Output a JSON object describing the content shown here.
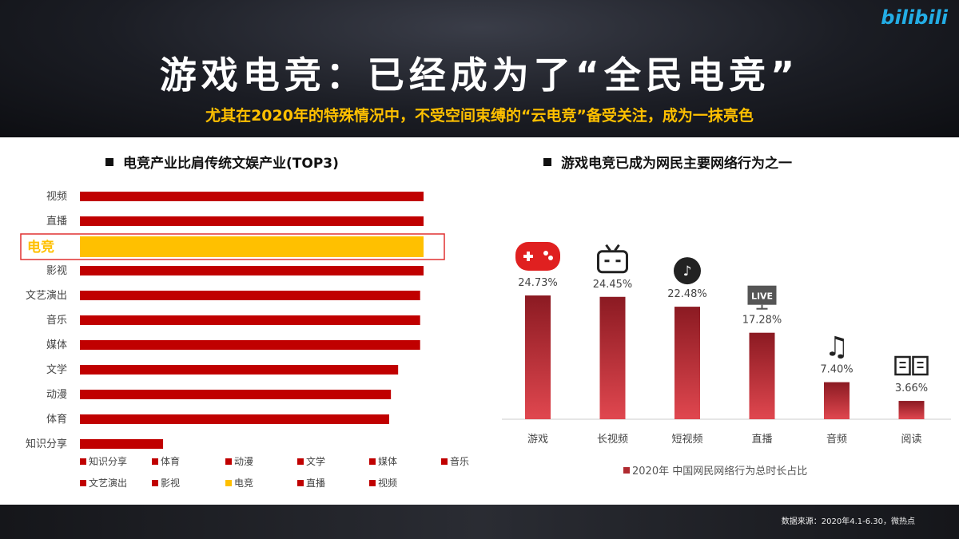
{
  "header": {
    "title": "游戏电竞：已经成为了“全民电竞”",
    "subtitle": "尤其在2020年的特殊情况中，不受空间束缚的“云电竞”备受关注，成为一抹亮色",
    "logo": "bilibili"
  },
  "footer": {
    "source": "数据来源：2020年4.1-6.30，微热点"
  },
  "colors": {
    "red": "#c00000",
    "gold": "#ffc000",
    "bar_gradient_top": "#8b1a22",
    "bar_gradient_bottom": "#e0474f"
  },
  "chart_data": [
    {
      "type": "bar",
      "orientation": "horizontal",
      "title": "电竞产业比肩传统文娱产业(TOP3)",
      "categories": [
        "视频",
        "直播",
        "电竞",
        "影视",
        "文艺演出",
        "音乐",
        "媒体",
        "文学",
        "动漫",
        "体育",
        "知识分享"
      ],
      "values": [
        100,
        100,
        100,
        100,
        99,
        99,
        99,
        92.6,
        90.5,
        90,
        24.2
      ],
      "value_note": "relative, no axis shown",
      "highlight": "电竞",
      "legend": [
        "知识分享",
        "体育",
        "动漫",
        "文学",
        "媒体",
        "音乐",
        "文艺演出",
        "影视",
        "电竞",
        "直播",
        "视频"
      ],
      "legend_placement": "bottom"
    },
    {
      "type": "bar",
      "title": "游戏电竞已成为网民主要网络行为之一",
      "categories": [
        "游戏",
        "长视频",
        "短视频",
        "直播",
        "音频",
        "阅读"
      ],
      "values": [
        24.73,
        24.45,
        22.48,
        17.28,
        7.4,
        3.66
      ],
      "labels": [
        "24.73%",
        "24.45%",
        "22.48%",
        "17.28%",
        "7.40%",
        "3.66%"
      ],
      "icons": [
        "gamepad-icon",
        "tv-icon",
        "tiktok-icon",
        "live-icon",
        "music-note-icon",
        "book-icon"
      ],
      "legend": [
        "2020年 中国网民网络行为总时长占比"
      ],
      "legend_placement": "bottom",
      "live_text": "LIVE"
    }
  ]
}
